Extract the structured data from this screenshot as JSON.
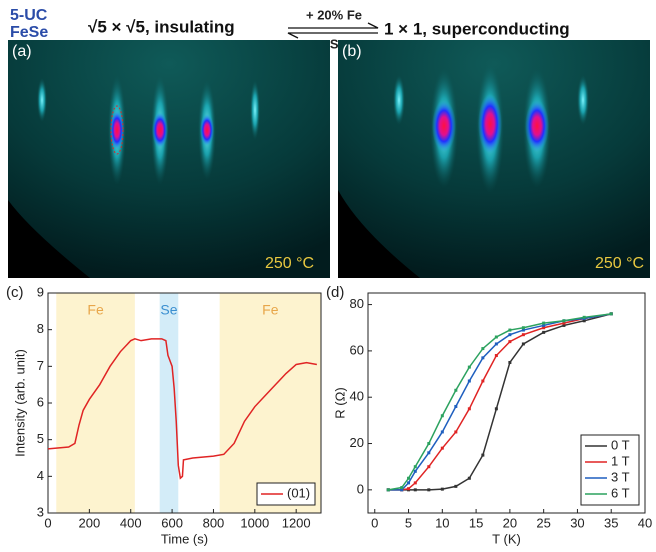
{
  "header": {
    "sample": [
      "5-UC",
      "FeSe"
    ],
    "left_phase": "√5 × √5, insulating",
    "forward": "+ 20% Fe",
    "backward": "+Se",
    "right_phase": "1 × 1, superconducting"
  },
  "images": [
    {
      "panel": "(a)",
      "label": "250 °C"
    },
    {
      "panel": "(b)",
      "label": "250 °C"
    }
  ],
  "chart_data": [
    {
      "type": "line",
      "panel": "(c)",
      "xlabel": "Time (s)",
      "ylabel": "Intensity (arb. unit)",
      "xlim": [
        0,
        1320
      ],
      "ylim": [
        3,
        9
      ],
      "xticks": [
        0,
        200,
        400,
        600,
        800,
        1000,
        1200
      ],
      "yticks": [
        3,
        4,
        5,
        6,
        7,
        8,
        9
      ],
      "legend": "lower right",
      "spans": [
        {
          "label": "Fe",
          "start": 40,
          "end": 420,
          "color": "#fdf3cf",
          "text_color": "#e8a64a"
        },
        {
          "label": "Se",
          "start": 540,
          "end": 630,
          "color": "#d3ecf8",
          "text_color": "#3b8fd0"
        },
        {
          "label": "Fe",
          "start": 830,
          "end": 1320,
          "color": "#fdf3cf",
          "text_color": "#e8a64a"
        }
      ],
      "x": [
        0,
        100,
        130,
        150,
        170,
        200,
        250,
        300,
        350,
        400,
        420,
        450,
        500,
        550,
        570,
        580,
        600,
        610,
        620,
        630,
        640,
        650,
        655,
        700,
        800,
        850,
        900,
        950,
        1000,
        1050,
        1100,
        1150,
        1200,
        1250,
        1300
      ],
      "series": [
        {
          "name": "(01)",
          "color": "#e02424",
          "values": [
            4.75,
            4.8,
            4.9,
            5.4,
            5.8,
            6.1,
            6.5,
            7.0,
            7.4,
            7.7,
            7.75,
            7.7,
            7.75,
            7.75,
            7.7,
            7.3,
            7.0,
            6.4,
            5.5,
            4.3,
            3.95,
            4.0,
            4.45,
            4.5,
            4.55,
            4.6,
            4.9,
            5.5,
            5.9,
            6.2,
            6.5,
            6.8,
            7.05,
            7.1,
            7.05
          ]
        }
      ]
    },
    {
      "type": "line",
      "panel": "(d)",
      "xlabel": "T (K)",
      "ylabel": "R (Ω)",
      "xlim": [
        -1,
        40
      ],
      "ylim": [
        -10,
        85
      ],
      "xticks": [
        0,
        5,
        10,
        15,
        20,
        25,
        30,
        35,
        40
      ],
      "yticks": [
        0,
        20,
        40,
        60,
        80
      ],
      "legend": "lower right",
      "x": [
        2,
        4,
        5,
        6,
        8,
        10,
        12,
        14,
        16,
        18,
        20,
        22,
        25,
        28,
        31,
        35
      ],
      "series": [
        {
          "name": "0 T",
          "color": "#333333",
          "values": [
            0,
            0,
            0,
            0,
            0,
            0.3,
            1.5,
            5,
            15,
            35,
            55,
            63,
            68,
            71,
            73,
            76
          ]
        },
        {
          "name": "1 T",
          "color": "#e02424",
          "values": [
            0,
            0,
            0.5,
            3,
            10,
            18,
            25,
            35,
            47,
            58,
            64,
            67,
            70,
            72,
            74,
            76
          ]
        },
        {
          "name": "3 T",
          "color": "#1f5fbf",
          "values": [
            0,
            0,
            3,
            8,
            16,
            25,
            36,
            47,
            57,
            63,
            67,
            69,
            71,
            73,
            74,
            76
          ]
        },
        {
          "name": "6 T",
          "color": "#2ca25f",
          "values": [
            0,
            1,
            5,
            10,
            20,
            32,
            43,
            53,
            61,
            66,
            69,
            70,
            72,
            73,
            74.5,
            76
          ]
        }
      ]
    }
  ]
}
